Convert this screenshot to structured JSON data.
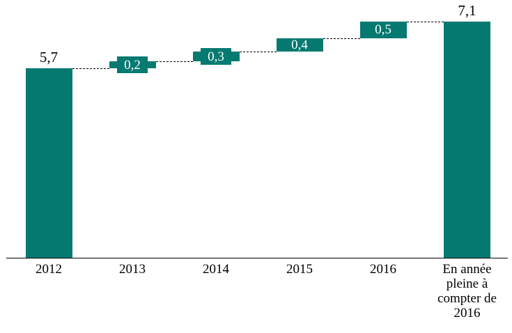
{
  "chart_data": {
    "type": "bar",
    "subtype": "waterfall",
    "title": "",
    "xlabel": "",
    "ylabel": "",
    "categories": [
      "2012",
      "2013",
      "2014",
      "2015",
      "2016",
      "En année pleine à compter de 2016"
    ],
    "values": [
      5.7,
      0.2,
      0.3,
      0.4,
      0.5,
      7.1
    ],
    "bar_kinds": [
      "total",
      "increment",
      "increment",
      "increment",
      "increment",
      "total"
    ],
    "value_labels": [
      "5,7",
      "0,2",
      "0,3",
      "0,4",
      "0,5",
      "7,1"
    ],
    "cumulative": [
      5.7,
      5.9,
      6.2,
      6.6,
      7.1,
      7.1
    ],
    "ylim": [
      0,
      7.5
    ],
    "grid": false,
    "legend_position": "none",
    "connector_style": "dashed",
    "colors": {
      "bar": "#067a71",
      "bar_label_text": "#ffffff",
      "total_label_text": "#000000",
      "axis_line": "#000000",
      "connector": "#000000",
      "background": "#ffffff"
    }
  }
}
